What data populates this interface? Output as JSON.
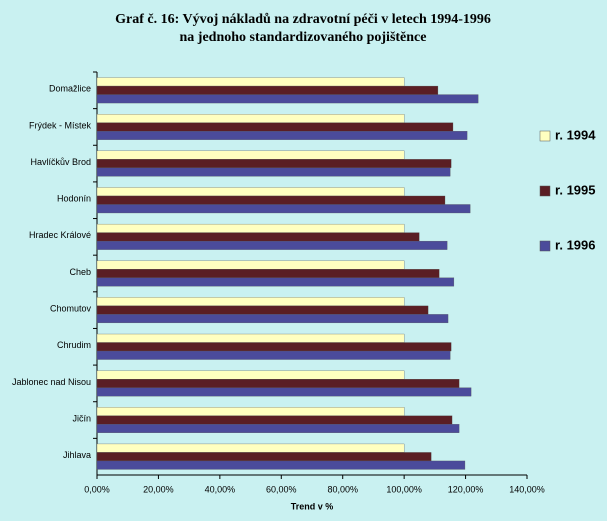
{
  "chart_data": {
    "type": "bar",
    "orientation": "horizontal",
    "title": "Graf č. 16: Vývoj nákladů na zdravotní péči v letech 1994-1996",
    "subtitle": "na jednoho standardizovaného pojištěnce",
    "x_label": "Trend v %",
    "categories": [
      "Domažlice",
      "Frýdek - Místek",
      "Havlíčkův Brod",
      "Hodonín",
      "Hradec Králové",
      "Cheb",
      "Chomutov",
      "Chrudim",
      "Jablonec nad Nisou",
      "Jičín",
      "Jihlava"
    ],
    "series": [
      {
        "name": "r. 1994",
        "color": "#ffffc0",
        "values": [
          100,
          100,
          100,
          100,
          100,
          100,
          100,
          100,
          100,
          100,
          100
        ]
      },
      {
        "name": "r. 1995",
        "color": "#5a1e24",
        "values": [
          111,
          115.9,
          115.3,
          113.3,
          104.9,
          111.4,
          107.8,
          115.3,
          117.9,
          115.6,
          108.8
        ]
      },
      {
        "name": "r. 1996",
        "color": "#4b4b9b",
        "values": [
          124.1,
          120.5,
          115,
          121.5,
          114,
          116.2,
          114.3,
          115,
          121.8,
          117.9,
          119.8
        ]
      }
    ],
    "xlim": [
      0,
      140
    ],
    "xticks": [
      {
        "value": 0,
        "label": "0,00%"
      },
      {
        "value": 20,
        "label": "20,00%"
      },
      {
        "value": 40,
        "label": "40,00%"
      },
      {
        "value": 60,
        "label": "60,00%"
      },
      {
        "value": 80,
        "label": "80,00%"
      },
      {
        "value": 100,
        "label": "100,00%"
      },
      {
        "value": 120,
        "label": "120,00%"
      },
      {
        "value": 140,
        "label": "140,00%"
      }
    ],
    "legend": "right"
  }
}
